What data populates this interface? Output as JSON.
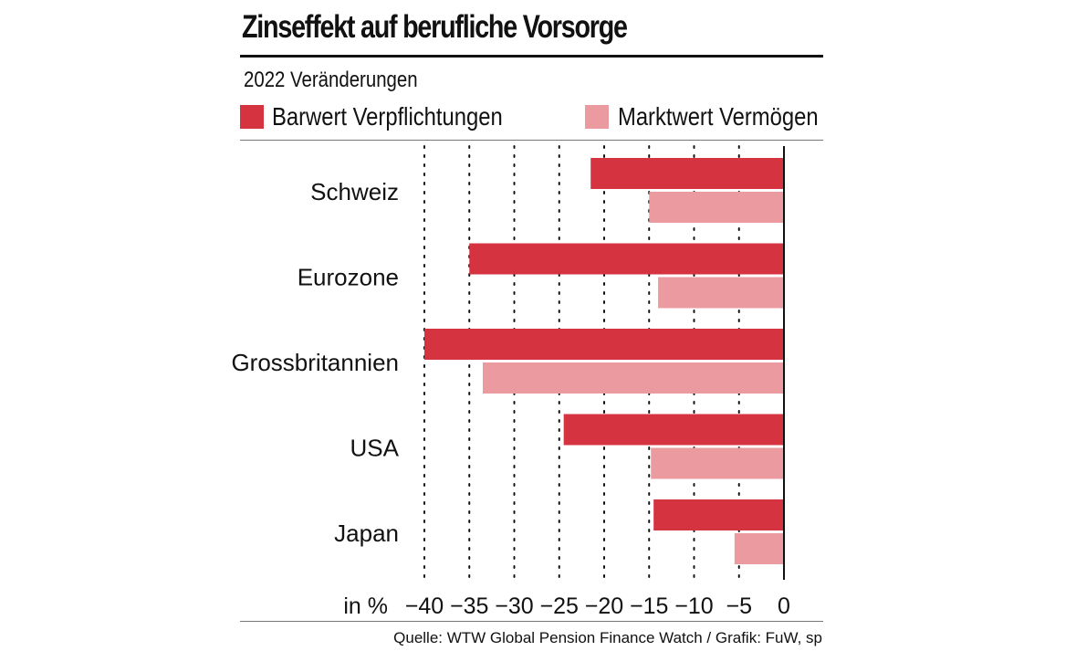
{
  "title": "Zinseffekt auf berufliche Vorsorge",
  "subtitle": "2022 Veränderungen",
  "source": "Quelle: WTW Global Pension Finance Watch / Grafik: FuW, sp",
  "colors": {
    "primary": "#d63340",
    "secondary": "#eb9aa0",
    "axis": "#111111",
    "grid": "#111111"
  },
  "chart_data": {
    "type": "bar",
    "orientation": "horizontal",
    "title": "Zinseffekt auf berufliche Vorsorge",
    "subtitle": "2022 Veränderungen",
    "categories": [
      "Schweiz",
      "Eurozone",
      "Grossbritannien",
      "USA",
      "Japan"
    ],
    "series": [
      {
        "name": "Barwert Verpflichtungen",
        "color": "#d63340",
        "values": [
          -21.5,
          -35,
          -40,
          -24.5,
          -14.5
        ]
      },
      {
        "name": "Marktwert Vermögen",
        "color": "#eb9aa0",
        "values": [
          -15,
          -14,
          -33.5,
          -14.8,
          -5.5
        ]
      }
    ],
    "xlabel": "in %",
    "xlim": [
      -40,
      0
    ],
    "ticks": [
      -40,
      -35,
      -30,
      -25,
      -20,
      -15,
      -10,
      -5,
      0
    ],
    "tick_labels": [
      "−40",
      "−35",
      "−30",
      "−25",
      "−20",
      "−15",
      "−10",
      "−5",
      "0"
    ],
    "grid": "vertical dotted",
    "legend": "top"
  }
}
